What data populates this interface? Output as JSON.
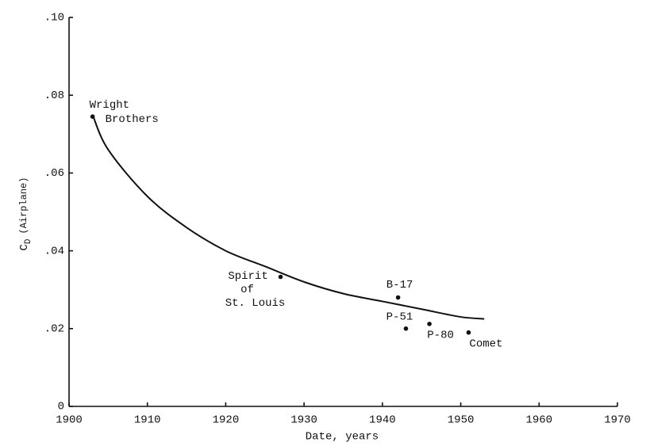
{
  "chart_data": {
    "type": "line",
    "xlabel": "Date, years",
    "ylabel": {
      "symbol": "C",
      "subscript": "D",
      "text": "(Airplane)"
    },
    "xlim": [
      1900,
      1970
    ],
    "xticks": [
      1900,
      1910,
      1920,
      1930,
      1940,
      1950,
      1960,
      1970
    ],
    "ylim": [
      0,
      0.1
    ],
    "yticks": [
      0,
      {
        "value": 0.02,
        "label": ".02"
      },
      {
        "value": 0.04,
        "label": ".04"
      },
      {
        "value": 0.06,
        "label": ".06"
      },
      {
        "value": 0.08,
        "label": ".08"
      },
      {
        "value": 0.1,
        "label": ".10"
      }
    ],
    "x": [
      1903,
      1905,
      1910,
      1915,
      1920,
      1925,
      1930,
      1935,
      1940,
      1945,
      1950,
      1953
    ],
    "series": [
      {
        "color": "#111111",
        "values": [
          0.075,
          0.066,
          0.054,
          0.046,
          0.04,
          0.036,
          0.032,
          0.029,
          0.027,
          0.025,
          0.023,
          0.0225
        ]
      }
    ],
    "points": [
      {
        "x": 1903,
        "y": 0.0745,
        "label": [
          "Wright",
          "Brothers"
        ]
      },
      {
        "x": 1927,
        "y": 0.0333,
        "label": [
          "Spirit",
          "of",
          "St. Louis"
        ]
      },
      {
        "x": 1942,
        "y": 0.028,
        "label": [
          "B-17"
        ]
      },
      {
        "x": 1943,
        "y": 0.02,
        "label": [
          "P-51"
        ]
      },
      {
        "x": 1946,
        "y": 0.0212,
        "label": [
          "P-80"
        ]
      },
      {
        "x": 1951,
        "y": 0.019,
        "label": [
          "Comet"
        ]
      }
    ],
    "point_color": "#111111"
  }
}
